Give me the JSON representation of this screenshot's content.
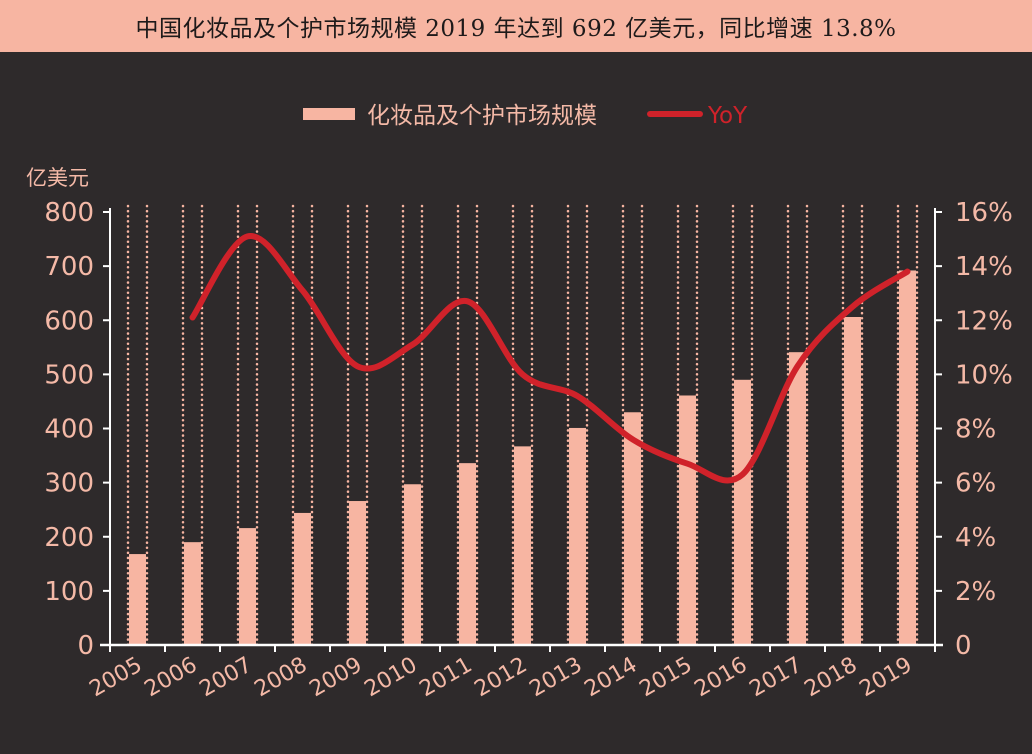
{
  "title": "中国化妆品及个护市场规模 2019 年达到 692 亿美元，同比增速 13.8%",
  "colors": {
    "bar": "#f7b5a2",
    "line": "#d0222a",
    "background": "#2e2a2b",
    "text": "#f4b9a7"
  },
  "chart_data": {
    "type": "bar",
    "categories": [
      "2005",
      "2006",
      "2007",
      "2008",
      "2009",
      "2010",
      "2011",
      "2012",
      "2013",
      "2014",
      "2015",
      "2016",
      "2017",
      "2018",
      "2019"
    ],
    "series": [
      {
        "name": "化妆品及个护市场规模",
        "type": "bar",
        "axis": "left",
        "values": [
          168,
          190,
          216,
          244,
          266,
          297,
          336,
          367,
          401,
          430,
          461,
          490,
          541,
          606,
          692
        ]
      },
      {
        "name": "YoY",
        "type": "line",
        "axis": "right",
        "unit": "%",
        "values": [
          null,
          12.1,
          15.1,
          13.1,
          10.3,
          11.1,
          12.7,
          10.0,
          9.2,
          7.6,
          6.7,
          6.3,
          10.3,
          12.5,
          13.8
        ]
      }
    ],
    "y_left": {
      "label": "亿美元",
      "range": [
        0,
        800
      ],
      "ticks": [
        "0",
        "100",
        "200",
        "300",
        "400",
        "500",
        "600",
        "700",
        "800"
      ]
    },
    "y_right": {
      "range": [
        0,
        16
      ],
      "ticks": [
        "0",
        "2%",
        "4%",
        "6%",
        "8%",
        "10%",
        "12%",
        "14%",
        "16%"
      ]
    },
    "legend": {
      "position": "top-center",
      "items": [
        "化妆品及个护市场规模",
        "YoY"
      ]
    },
    "grid": false
  }
}
